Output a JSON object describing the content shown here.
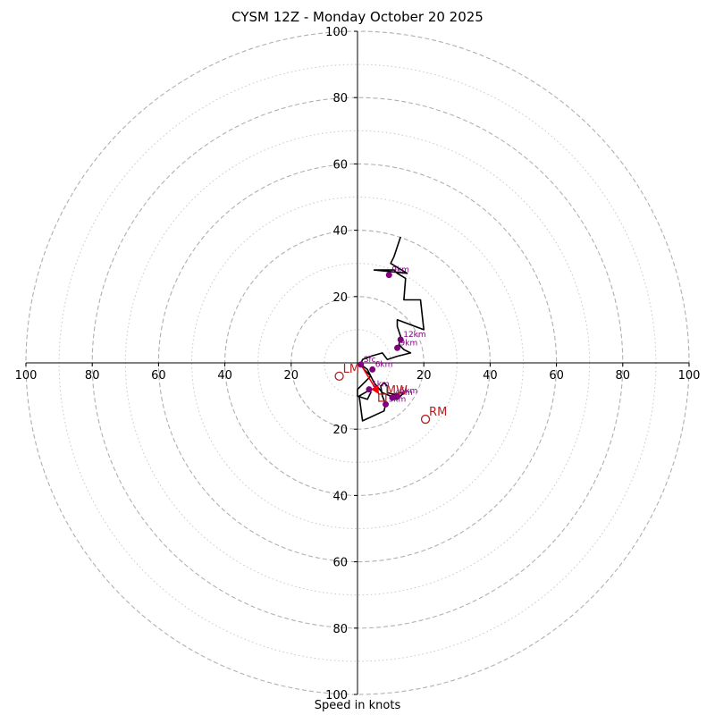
{
  "chart_data": {
    "type": "hodograph",
    "title": "CYSM 12Z - Monday October 20 2025",
    "xlabel": "Speed in knots",
    "range_knots": 100,
    "ring_major": [
      20,
      40,
      60,
      80,
      100
    ],
    "ring_minor": [
      10,
      30,
      50,
      70,
      90
    ],
    "x_ticks": [
      "100",
      "80",
      "60",
      "40",
      "20",
      "20",
      "40",
      "60",
      "80",
      "100"
    ],
    "x_tick_values": [
      -100,
      -80,
      -60,
      -40,
      -20,
      20,
      40,
      60,
      80,
      100
    ],
    "y_ticks": [
      "100",
      "80",
      "60",
      "40",
      "20",
      "20",
      "40",
      "60",
      "80",
      "100"
    ],
    "y_tick_values": [
      100,
      80,
      60,
      40,
      20,
      -20,
      -40,
      -60,
      -80,
      -100
    ],
    "colors": {
      "trace": "#000000",
      "height": "#800080",
      "motion": "#b22222",
      "shear": "#ff0000",
      "grid": "#b0b0b0"
    },
    "trace_uv": [
      [
        1,
        -0.5
      ],
      [
        3,
        -2
      ],
      [
        5,
        -6
      ],
      [
        7.5,
        -9
      ],
      [
        10,
        -10
      ],
      [
        12,
        -11
      ],
      [
        13,
        -10
      ],
      [
        14,
        -9
      ],
      [
        13,
        -9
      ],
      [
        11,
        -9.5
      ],
      [
        9,
        -9
      ],
      [
        9,
        -7
      ],
      [
        8,
        -6
      ],
      [
        7,
        -7
      ],
      [
        7.5,
        -10
      ],
      [
        8.5,
        -12.5
      ],
      [
        8,
        -14.5
      ],
      [
        1.5,
        -17.5
      ],
      [
        0.5,
        -10
      ],
      [
        4,
        -8
      ],
      [
        4,
        -9
      ],
      [
        3,
        -11
      ],
      [
        0,
        -10
      ],
      [
        0,
        -8
      ],
      [
        2,
        -6
      ],
      [
        4,
        -4
      ],
      [
        2,
        -2
      ],
      [
        1,
        -0.5
      ],
      [
        1.5,
        1
      ],
      [
        4,
        2
      ],
      [
        7.5,
        3
      ],
      [
        9,
        1
      ],
      [
        12,
        2
      ],
      [
        16,
        3
      ],
      [
        14,
        4
      ],
      [
        12.5,
        5.5
      ],
      [
        13,
        8
      ],
      [
        12,
        11
      ],
      [
        12,
        13
      ],
      [
        20,
        10
      ],
      [
        19,
        19
      ],
      [
        14,
        19
      ],
      [
        14.5,
        25.5
      ],
      [
        12,
        27
      ],
      [
        11,
        28
      ],
      [
        5,
        28
      ],
      [
        15,
        27
      ],
      [
        10,
        30
      ],
      [
        11,
        32
      ],
      [
        13,
        38
      ]
    ],
    "height_markers": [
      {
        "label": "Sfc",
        "u": 1,
        "v": -0.5
      },
      {
        "label": "1km",
        "u": 3.5,
        "v": -8
      },
      {
        "label": "3km",
        "u": 8.5,
        "v": -12.5
      },
      {
        "label": "4km",
        "u": 10.5,
        "v": -10.5
      },
      {
        "label": "5km",
        "u": 12,
        "v": -10
      },
      {
        "label": "6km",
        "u": 4.5,
        "v": -2
      },
      {
        "label": "9km",
        "u": 12,
        "v": 4.5
      },
      {
        "label": "12km",
        "u": 13,
        "v": 7
      },
      {
        "label": "9km",
        "u": 9.5,
        "v": 26.5
      }
    ],
    "storm_motion": [
      {
        "label": "LM",
        "u": -5.5,
        "v": -4
      },
      {
        "label": "RM",
        "u": 20.5,
        "v": -17
      }
    ],
    "mean_wind": {
      "label": "MW",
      "u": 7.5,
      "v": -10.5
    },
    "shear_vector": {
      "from_u": 1,
      "from_v": -0.5,
      "to_u": 6.5,
      "to_v": -9.5
    }
  }
}
